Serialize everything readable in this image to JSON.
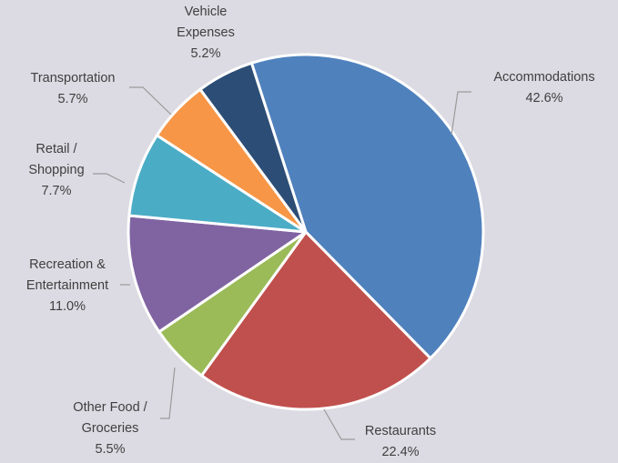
{
  "chart_data": {
    "type": "pie",
    "title": "",
    "start_angle_deg": -17.8,
    "direction": "clockwise",
    "slices": [
      {
        "name": "Accommodations",
        "label_lines": [
          "Accommodations"
        ],
        "value": 42.6,
        "value_label": "42.6%",
        "color": "#4f81bd"
      },
      {
        "name": "Restaurants",
        "label_lines": [
          "Restaurants"
        ],
        "value": 22.4,
        "value_label": "22.4%",
        "color": "#c0504d"
      },
      {
        "name": "Other Food / Groceries",
        "label_lines": [
          "Other Food /",
          "Groceries"
        ],
        "value": 5.5,
        "value_label": "5.5%",
        "color": "#9bbb59"
      },
      {
        "name": "Recreation & Entertainment",
        "label_lines": [
          "Recreation &",
          "Entertainment"
        ],
        "value": 11.0,
        "value_label": "11.0%",
        "color": "#8064a2"
      },
      {
        "name": "Retail / Shopping",
        "label_lines": [
          "Retail /",
          "Shopping"
        ],
        "value": 7.7,
        "value_label": "7.7%",
        "color": "#4bacc6"
      },
      {
        "name": "Transportation",
        "label_lines": [
          "Transportation"
        ],
        "value": 5.7,
        "value_label": "5.7%",
        "color": "#f79646"
      },
      {
        "name": "Vehicle Expenses",
        "label_lines": [
          "Vehicle",
          "Expenses"
        ],
        "value": 5.2,
        "value_label": "5.2%",
        "color": "#2c4d75"
      }
    ]
  }
}
